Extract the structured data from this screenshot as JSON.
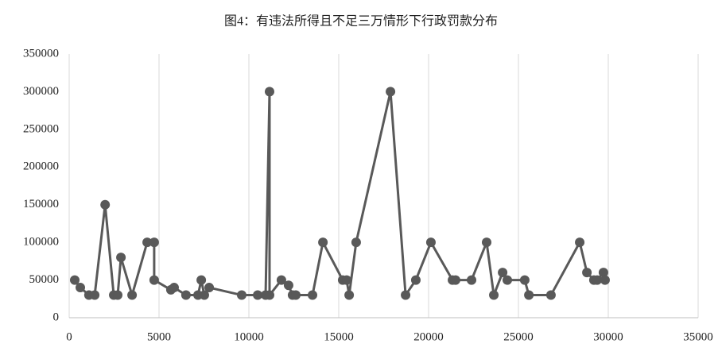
{
  "chart_data": {
    "type": "line",
    "title": "图4：有违法所得且不足三万情形下行政罚款分布",
    "x": [
      310,
      620,
      1100,
      1420,
      2000,
      2480,
      2700,
      2880,
      3500,
      4340,
      4730,
      4730,
      5660,
      5840,
      6500,
      7170,
      7350,
      7520,
      7790,
      9600,
      10490,
      10930,
      11150,
      11150,
      11810,
      12210,
      12430,
      12610,
      13540,
      14120,
      15220,
      15440,
      15580,
      15970,
      17880,
      18720,
      19290,
      20130,
      21330,
      21500,
      22390,
      23230,
      23630,
      24120,
      24380,
      25350,
      25580,
      26810,
      28410,
      28810,
      29200,
      29380,
      29730,
      29820
    ],
    "values": [
      50000,
      40000,
      30000,
      30000,
      150000,
      30000,
      30000,
      80000,
      30000,
      100000,
      100000,
      50000,
      37000,
      40000,
      30000,
      30000,
      50000,
      30000,
      40000,
      30000,
      30000,
      30000,
      300000,
      30000,
      50000,
      43000,
      30000,
      30000,
      30000,
      100000,
      50000,
      50000,
      30000,
      100000,
      300000,
      30000,
      50000,
      100000,
      50000,
      50000,
      50000,
      100000,
      30000,
      60000,
      50000,
      50000,
      30000,
      30000,
      100000,
      60000,
      50000,
      50000,
      60000,
      50000
    ],
    "color": "#595959",
    "xlim": [
      0,
      35000
    ],
    "xticks": [
      0,
      5000,
      10000,
      15000,
      20000,
      25000,
      30000,
      35000
    ],
    "ylim": [
      0,
      350000
    ],
    "yticks": [
      0,
      50000,
      100000,
      150000,
      200000,
      250000,
      300000,
      350000
    ],
    "grid": "x"
  }
}
